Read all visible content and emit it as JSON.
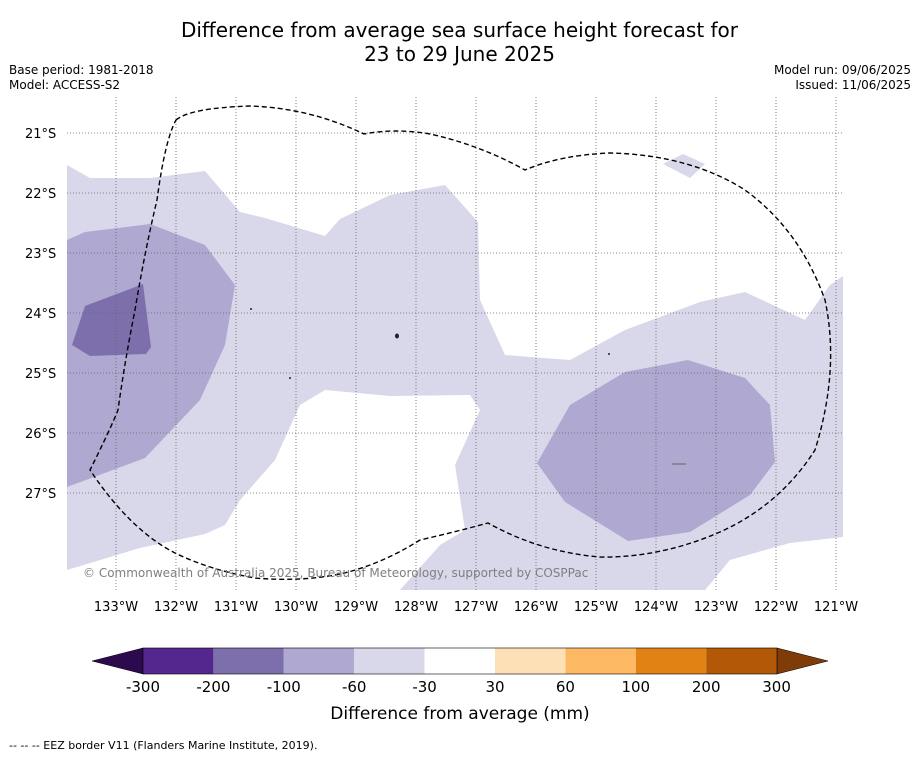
{
  "title_line1": "Difference from average sea surface height forecast for",
  "title_line2": "23 to 29 June 2025",
  "info_left": {
    "base_period": "Base period: 1981-2018",
    "model": "Model: ACCESS-S2"
  },
  "info_right": {
    "model_run": "Model run: 09/06/2025",
    "issued": "Issued: 11/06/2025"
  },
  "map": {
    "lat_labels": [
      "21°S",
      "22°S",
      "23°S",
      "24°S",
      "25°S",
      "26°S",
      "27°S"
    ],
    "lon_labels": [
      "133°W",
      "132°W",
      "131°W",
      "130°W",
      "129°W",
      "128°W",
      "127°W",
      "126°W",
      "125°W",
      "124°W",
      "123°W",
      "122°W",
      "121°W"
    ],
    "copyright": "© Commonwealth of Australia 2025, Bureau of Meteorology, supported by COSPPac"
  },
  "colorbar": {
    "title": "Difference from average (mm)",
    "ticks": [
      "-300",
      "-200",
      "-100",
      "-60",
      "-30",
      "30",
      "60",
      "100",
      "200",
      "300"
    ],
    "colors": [
      "#2d0a4e",
      "#54278f",
      "#7d6fab",
      "#afa8d1",
      "#d9d8ea",
      "#ffffff",
      "#fee0b6",
      "#fdb863",
      "#e08214",
      "#b35806",
      "#7f3b08"
    ]
  },
  "footnote": "-- -- -- EEZ border V11 (Flanders Marine Institute, 2019)."
}
